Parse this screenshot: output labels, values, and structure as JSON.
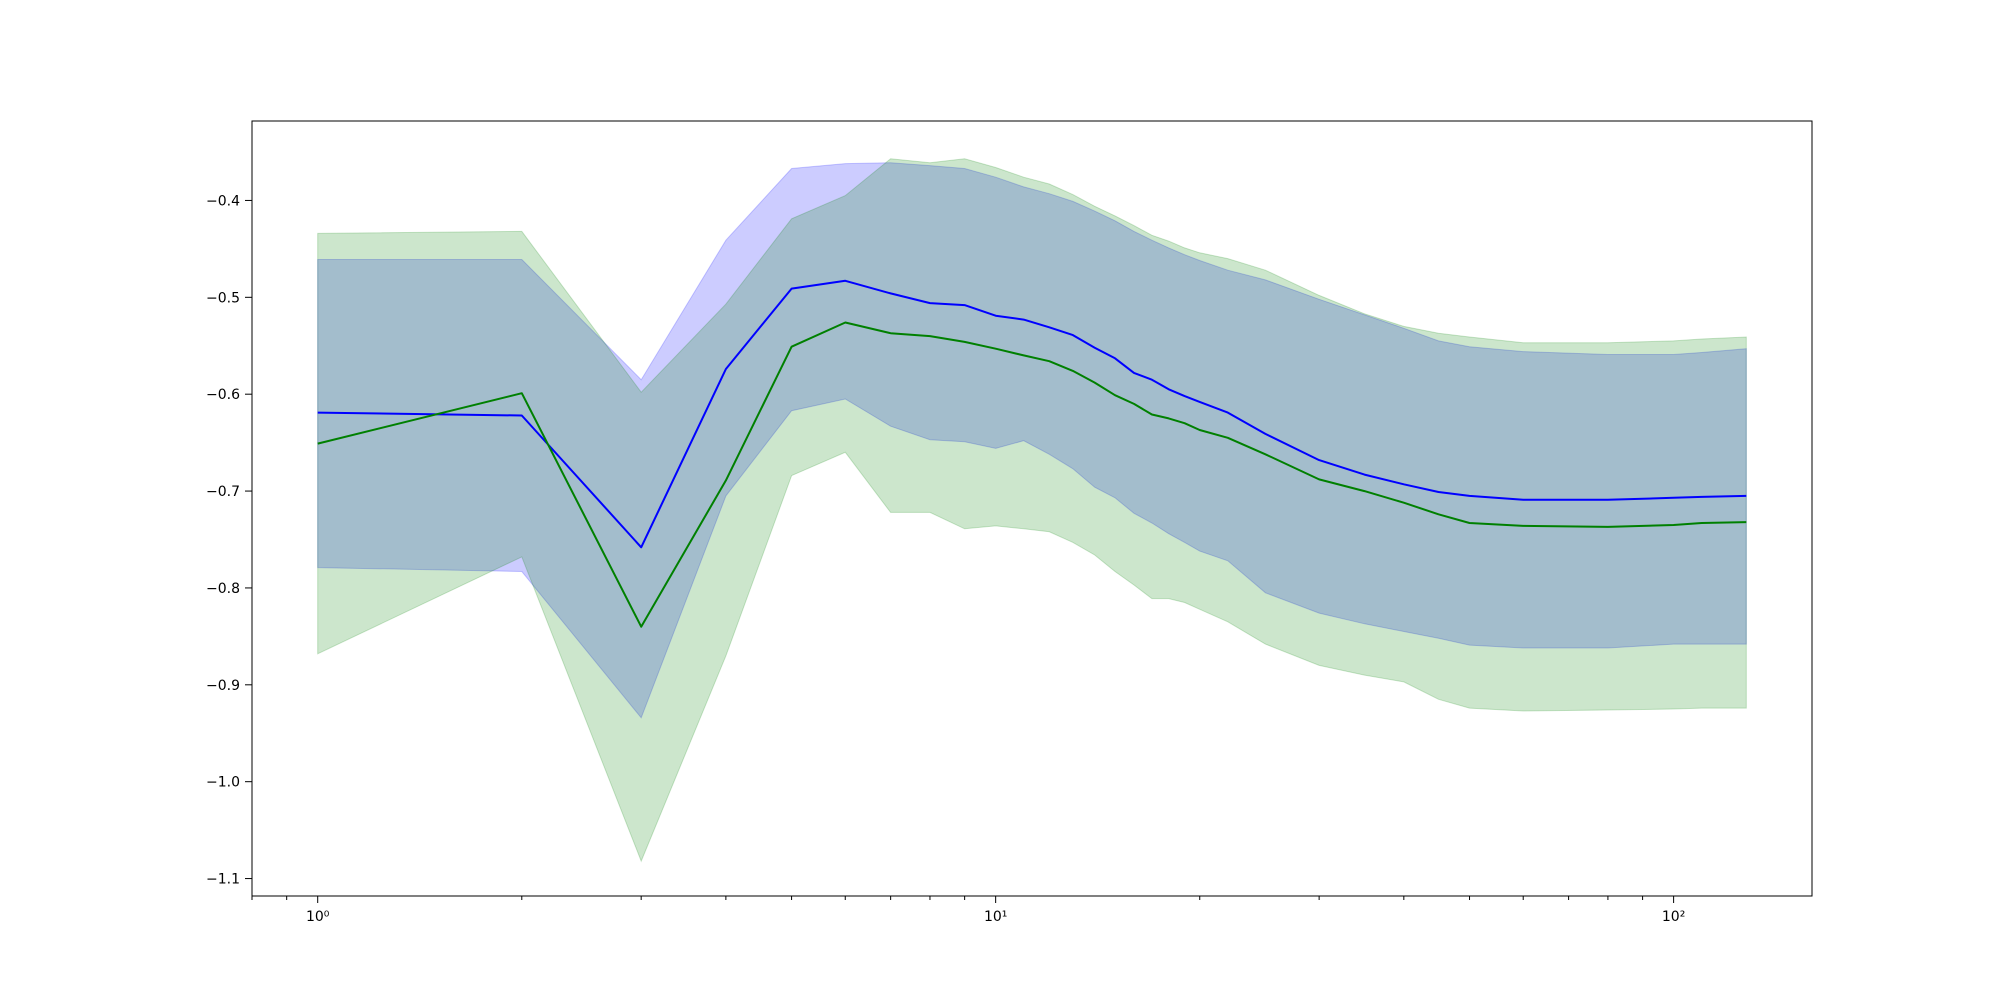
{
  "chart_data": {
    "type": "line",
    "title": "",
    "xlabel": "",
    "ylabel": "",
    "xscale": "log",
    "xlim": [
      0.8,
      160
    ],
    "ylim": [
      -1.118,
      -0.318
    ],
    "grid": false,
    "legend": "none",
    "x_ticks": [
      {
        "value": 1,
        "label": "10⁰"
      },
      {
        "value": 10,
        "label": "10¹"
      },
      {
        "value": 100,
        "label": "10²"
      }
    ],
    "y_ticks": [
      {
        "value": -0.4,
        "label": "−0.4"
      },
      {
        "value": -0.5,
        "label": "−0.5"
      },
      {
        "value": -0.6,
        "label": "−0.6"
      },
      {
        "value": -0.7,
        "label": "−0.7"
      },
      {
        "value": -0.8,
        "label": "−0.8"
      },
      {
        "value": -0.9,
        "label": "−0.9"
      },
      {
        "value": -1.0,
        "label": "−1.0"
      },
      {
        "value": -1.1,
        "label": "−1.1"
      }
    ],
    "series": [
      {
        "color": "#0000ff",
        "band_color": "#0000ff",
        "band_opacity": 0.2,
        "x": [
          1,
          2,
          3,
          4,
          5,
          6,
          7,
          8,
          9,
          10,
          11,
          12,
          13,
          14,
          15,
          16,
          17,
          18,
          19,
          20,
          22,
          25,
          30,
          35,
          40,
          45,
          50,
          60,
          80,
          100,
          110,
          128
        ],
        "y": [
          -0.619,
          -0.622,
          -0.758,
          -0.574,
          -0.491,
          -0.483,
          -0.496,
          -0.506,
          -0.508,
          -0.519,
          -0.523,
          -0.531,
          -0.539,
          -0.552,
          -0.563,
          -0.578,
          -0.585,
          -0.595,
          -0.602,
          -0.608,
          -0.619,
          -0.641,
          -0.668,
          -0.683,
          -0.693,
          -0.701,
          -0.705,
          -0.709,
          -0.709,
          -0.707,
          -0.706,
          -0.705
        ],
        "lower": [
          -0.779,
          -0.783,
          -0.934,
          -0.705,
          -0.617,
          -0.605,
          -0.633,
          -0.647,
          -0.649,
          -0.656,
          -0.648,
          -0.662,
          -0.677,
          -0.696,
          -0.707,
          -0.723,
          -0.733,
          -0.744,
          -0.753,
          -0.762,
          -0.772,
          -0.805,
          -0.826,
          -0.837,
          -0.845,
          -0.852,
          -0.859,
          -0.862,
          -0.862,
          -0.858,
          -0.858,
          -0.858
        ],
        "upper": [
          -0.461,
          -0.461,
          -0.585,
          -0.441,
          -0.367,
          -0.362,
          -0.361,
          -0.364,
          -0.367,
          -0.376,
          -0.386,
          -0.393,
          -0.401,
          -0.411,
          -0.421,
          -0.432,
          -0.441,
          -0.449,
          -0.456,
          -0.462,
          -0.472,
          -0.482,
          -0.502,
          -0.518,
          -0.532,
          -0.545,
          -0.551,
          -0.556,
          -0.559,
          -0.559,
          -0.557,
          -0.553
        ]
      },
      {
        "color": "#008000",
        "band_color": "#008000",
        "band_opacity": 0.2,
        "x": [
          1,
          2,
          3,
          4,
          5,
          6,
          7,
          8,
          9,
          10,
          11,
          12,
          13,
          14,
          15,
          16,
          17,
          18,
          19,
          20,
          22,
          25,
          30,
          35,
          40,
          45,
          50,
          60,
          80,
          100,
          110,
          128
        ],
        "y": [
          -0.651,
          -0.599,
          -0.84,
          -0.689,
          -0.551,
          -0.526,
          -0.537,
          -0.54,
          -0.546,
          -0.553,
          -0.56,
          -0.566,
          -0.576,
          -0.588,
          -0.601,
          -0.61,
          -0.621,
          -0.625,
          -0.63,
          -0.637,
          -0.645,
          -0.662,
          -0.688,
          -0.7,
          -0.712,
          -0.724,
          -0.733,
          -0.736,
          -0.737,
          -0.735,
          -0.733,
          -0.732
        ],
        "lower": [
          -0.868,
          -0.768,
          -1.082,
          -0.87,
          -0.684,
          -0.66,
          -0.722,
          -0.722,
          -0.739,
          -0.736,
          -0.739,
          -0.742,
          -0.753,
          -0.766,
          -0.783,
          -0.797,
          -0.811,
          -0.811,
          -0.815,
          -0.822,
          -0.835,
          -0.858,
          -0.88,
          -0.89,
          -0.897,
          -0.915,
          -0.924,
          -0.927,
          -0.926,
          -0.925,
          -0.924,
          -0.924
        ],
        "upper": [
          -0.434,
          -0.432,
          -0.598,
          -0.507,
          -0.419,
          -0.395,
          -0.357,
          -0.361,
          -0.357,
          -0.366,
          -0.376,
          -0.383,
          -0.394,
          -0.406,
          -0.416,
          -0.426,
          -0.436,
          -0.442,
          -0.449,
          -0.454,
          -0.46,
          -0.472,
          -0.498,
          -0.517,
          -0.53,
          -0.537,
          -0.541,
          -0.547,
          -0.547,
          -0.545,
          -0.543,
          -0.541
        ]
      }
    ]
  }
}
